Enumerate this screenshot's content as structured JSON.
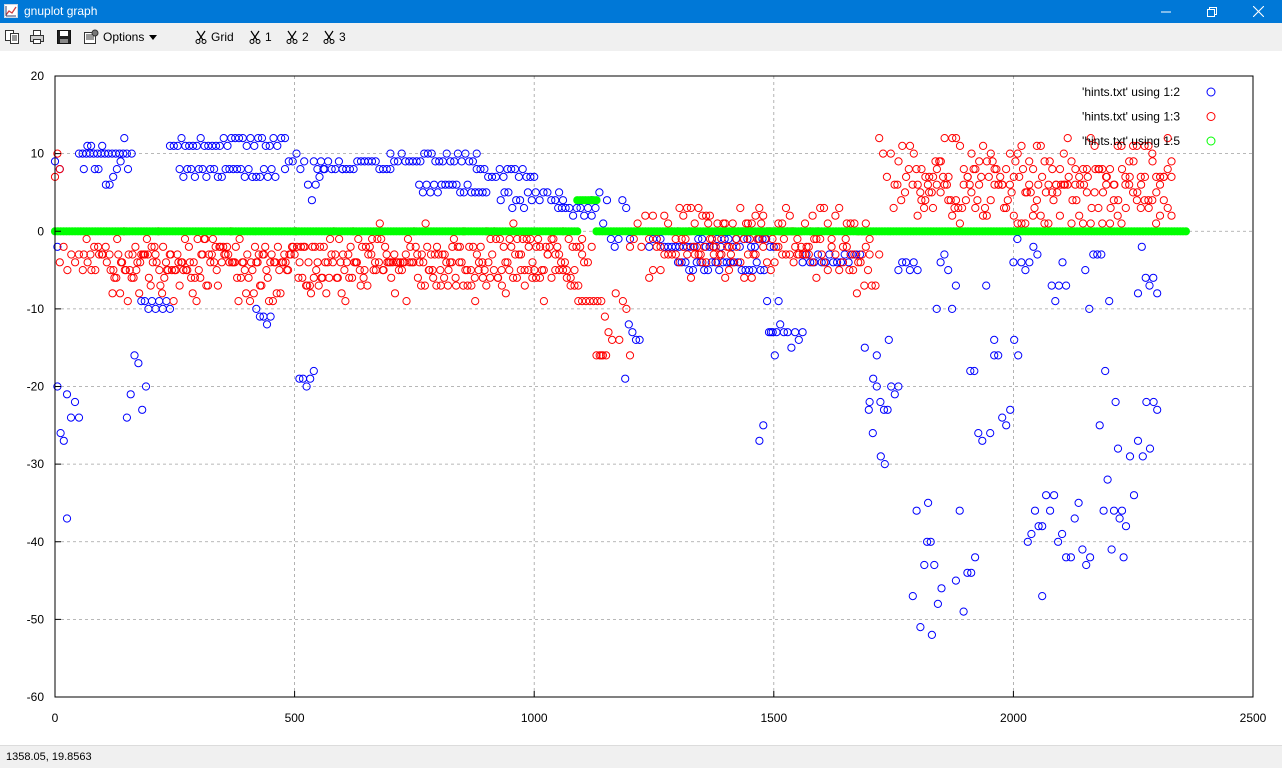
{
  "window": {
    "title": "gnuplot graph"
  },
  "toolbar": {
    "options_label": "Options",
    "grid_label": "Grid",
    "btn1_label": "1",
    "btn2_label": "2",
    "btn3_label": "3"
  },
  "status": {
    "coords": "1358.05,  19.8563"
  },
  "colors": {
    "series1": "#0000ff",
    "series2": "#ff0000",
    "series3": "#00ff00",
    "grid": "#a0a0a0",
    "titlebar": "#0078d7"
  },
  "chart_data": {
    "type": "scatter",
    "xlim": [
      0,
      2500
    ],
    "ylim": [
      -60,
      20
    ],
    "xticks": [
      0,
      500,
      1000,
      1500,
      2000,
      2500
    ],
    "yticks": [
      -60,
      -50,
      -40,
      -30,
      -20,
      -10,
      0,
      10,
      20
    ],
    "grid": true,
    "legend_position": "top-right",
    "series": [
      {
        "name": "'hints.txt' using 1:2",
        "color": "#0000ff",
        "segments": [
          {
            "x": [
              0,
              10
            ],
            "y": [
              20,
              -12
            ]
          },
          {
            "x": [
              5,
              25
            ],
            "y": [
              -20,
              -40
            ]
          },
          {
            "x": [
              25,
              50
            ],
            "y": [
              -40,
              -18
            ]
          },
          {
            "x": [
              50,
              150
            ],
            "y": [
              10,
              10
            ]
          },
          {
            "x": [
              60,
              160
            ],
            "y": [
              12,
              5
            ]
          },
          {
            "x": [
              150,
              190
            ],
            "y": [
              -15,
              -26
            ]
          },
          {
            "x": [
              180,
              240
            ],
            "y": [
              -10,
              -9
            ]
          },
          {
            "x": [
              240,
              480
            ],
            "y": [
              11,
              12
            ]
          },
          {
            "x": [
              260,
              460
            ],
            "y": [
              7,
              8
            ]
          },
          {
            "x": [
              420,
              450
            ],
            "y": [
              -10,
              -12
            ]
          },
          {
            "x": [
              480,
              560
            ],
            "y": [
              10,
              4
            ]
          },
          {
            "x": [
              510,
              540
            ],
            "y": [
              -18,
              -22
            ]
          },
          {
            "x": [
              540,
              600
            ],
            "y": [
              9,
              8
            ]
          },
          {
            "x": [
              600,
              700
            ],
            "y": [
              8,
              9
            ]
          },
          {
            "x": [
              700,
              880
            ],
            "y": [
              9,
              10
            ]
          },
          {
            "x": [
              760,
              900
            ],
            "y": [
              6,
              5
            ]
          },
          {
            "x": [
              880,
              1000
            ],
            "y": [
              8,
              7
            ]
          },
          {
            "x": [
              930,
              1060
            ],
            "y": [
              5,
              3
            ]
          },
          {
            "x": [
              1050,
              1120
            ],
            "y": [
              3,
              2
            ]
          },
          {
            "x": [
              1120,
              1200
            ],
            "y": [
              5,
              -3
            ]
          },
          {
            "x": [
              1190,
              1220
            ],
            "y": [
              -10,
              -23
            ]
          },
          {
            "x": [
              1240,
              1500
            ],
            "y": [
              -2,
              -1
            ]
          },
          {
            "x": [
              1300,
              1480
            ],
            "y": [
              -5,
              -4
            ]
          },
          {
            "x": [
              1470,
              1510
            ],
            "y": [
              -9,
              -27
            ]
          },
          {
            "x": [
              1490,
              1560
            ],
            "y": [
              -12,
              -15
            ]
          },
          {
            "x": [
              1560,
              1680
            ],
            "y": [
              -3,
              -4
            ]
          },
          {
            "x": [
              1690,
              1740
            ],
            "y": [
              -11,
              -30
            ]
          },
          {
            "x": [
              1700,
              1760
            ],
            "y": [
              -18,
              -24
            ]
          },
          {
            "x": [
              1760,
              1800
            ],
            "y": [
              -1,
              -5
            ]
          },
          {
            "x": [
              1790,
              1830
            ],
            "y": [
              -33,
              -53
            ]
          },
          {
            "x": [
              1820,
              1850
            ],
            "y": [
              -36,
              -48
            ]
          },
          {
            "x": [
              1840,
              1880
            ],
            "y": [
              -1,
              -12
            ]
          },
          {
            "x": [
              1880,
              1920
            ],
            "y": [
              -32,
              -49
            ]
          },
          {
            "x": [
              1910,
              1960
            ],
            "y": [
              -5,
              -28
            ]
          },
          {
            "x": [
              1960,
              2010
            ],
            "y": [
              -13,
              -26
            ]
          },
          {
            "x": [
              2000,
              2050
            ],
            "y": [
              -1,
              -5
            ]
          },
          {
            "x": [
              2030,
              2060
            ],
            "y": [
              -30,
              -48
            ]
          },
          {
            "x": [
              2060,
              2110
            ],
            "y": [
              -33,
              -44
            ]
          },
          {
            "x": [
              2080,
              2110
            ],
            "y": [
              -2,
              -12
            ]
          },
          {
            "x": [
              2120,
              2160
            ],
            "y": [
              -34,
              -48
            ]
          },
          {
            "x": [
              2150,
              2200
            ],
            "y": [
              -2,
              -20
            ]
          },
          {
            "x": [
              2180,
              2230
            ],
            "y": [
              -18,
              -44
            ]
          },
          {
            "x": [
              2210,
              2260
            ],
            "y": [
              -26,
              -38
            ]
          },
          {
            "x": [
              2260,
              2300
            ],
            "y": [
              -2,
              -9
            ]
          },
          {
            "x": [
              2270,
              2300
            ],
            "y": [
              -16,
              -38
            ]
          }
        ]
      },
      {
        "name": "'hints.txt' using 1:3",
        "color": "#ff0000",
        "segments": [
          {
            "x": [
              0,
              10
            ],
            "y": [
              11,
              -3
            ]
          },
          {
            "x": [
              10,
              1120
            ],
            "y": [
              -1,
              -5
            ]
          },
          {
            "x": [
              60,
              1100
            ],
            "y": [
              -3,
              -7
            ]
          },
          {
            "x": [
              120,
              1100
            ],
            "y": [
              1,
              -9
            ]
          },
          {
            "x": [
              1100,
              1140
            ],
            "y": [
              -9,
              -9
            ]
          },
          {
            "x": [
              1130,
              1150
            ],
            "y": [
              -16,
              -16
            ]
          },
          {
            "x": [
              1140,
              1200
            ],
            "y": [
              -5,
              -18
            ]
          },
          {
            "x": [
              1200,
              1700
            ],
            "y": [
              3,
              -2
            ]
          },
          {
            "x": [
              1240,
              1700
            ],
            "y": [
              -1,
              -6
            ]
          },
          {
            "x": [
              1300,
              1600
            ],
            "y": [
              1,
              -3
            ]
          },
          {
            "x": [
              1650,
              1720
            ],
            "y": [
              0,
              -8
            ]
          },
          {
            "x": [
              1720,
              2330
            ],
            "y": [
              12,
              5
            ]
          },
          {
            "x": [
              1750,
              2330
            ],
            "y": [
              9,
              3
            ]
          },
          {
            "x": [
              1800,
              2330
            ],
            "y": [
              7,
              1
            ]
          }
        ]
      },
      {
        "name": "'hints.txt' using 1:5",
        "color": "#00ff00",
        "segments": [
          {
            "x": [
              0,
              1090
            ],
            "y": [
              0,
              0
            ]
          },
          {
            "x": [
              1090,
              1130
            ],
            "y": [
              4,
              4
            ]
          },
          {
            "x": [
              1130,
              1690
            ],
            "y": [
              0,
              0
            ]
          },
          {
            "x": [
              1690,
              2360
            ],
            "y": [
              0,
              0
            ]
          }
        ]
      }
    ]
  }
}
